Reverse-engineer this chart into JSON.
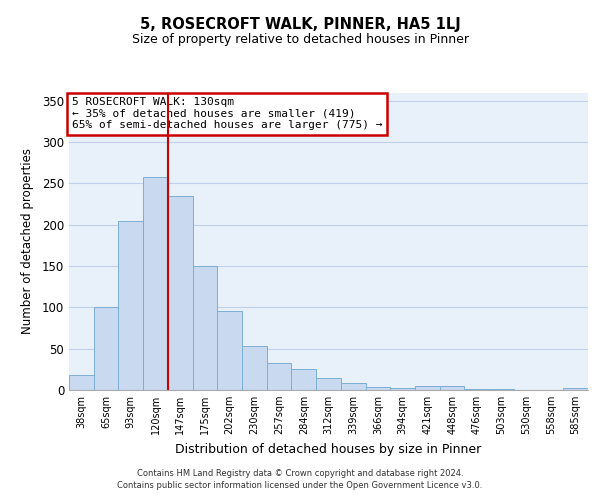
{
  "title": "5, ROSECROFT WALK, PINNER, HA5 1LJ",
  "subtitle": "Size of property relative to detached houses in Pinner",
  "xlabel": "Distribution of detached houses by size in Pinner",
  "ylabel": "Number of detached properties",
  "bar_labels": [
    "38sqm",
    "65sqm",
    "93sqm",
    "120sqm",
    "147sqm",
    "175sqm",
    "202sqm",
    "230sqm",
    "257sqm",
    "284sqm",
    "312sqm",
    "339sqm",
    "366sqm",
    "394sqm",
    "421sqm",
    "448sqm",
    "476sqm",
    "503sqm",
    "530sqm",
    "558sqm",
    "585sqm"
  ],
  "bar_values": [
    18,
    100,
    205,
    258,
    235,
    150,
    95,
    53,
    33,
    25,
    14,
    8,
    4,
    3,
    5,
    5,
    1,
    1,
    0,
    0,
    2
  ],
  "bar_color": "#c9d9f0",
  "bar_edge_color": "#7bafd4",
  "grid_color": "#c0cfe8",
  "background_color": "#e8f0fa",
  "vline_color": "#cc0000",
  "annotation_title": "5 ROSECROFT WALK: 130sqm",
  "annotation_line1": "← 35% of detached houses are smaller (419)",
  "annotation_line2": "65% of semi-detached houses are larger (775) →",
  "annotation_box_color": "#cc0000",
  "footer1": "Contains HM Land Registry data © Crown copyright and database right 2024.",
  "footer2": "Contains public sector information licensed under the Open Government Licence v3.0.",
  "ylim": [
    0,
    360
  ],
  "yticks": [
    0,
    50,
    100,
    150,
    200,
    250,
    300,
    350
  ]
}
